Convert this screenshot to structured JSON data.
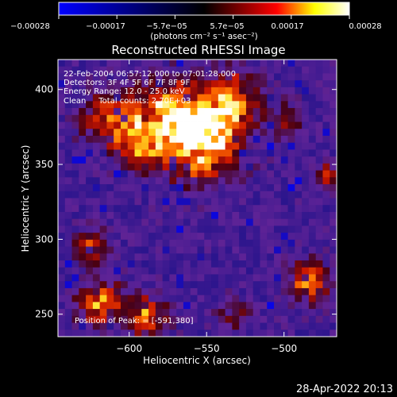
{
  "chart_data": {
    "type": "heatmap",
    "title": "Reconstructed RHESSI Image",
    "xlabel": "Heliocentric X (arcsec)",
    "ylabel": "Heliocentric Y (arcsec)",
    "xlim": [
      -646,
      -553
    ],
    "ylim": [
      235,
      420
    ],
    "x_ticks": [
      {
        "value": -600,
        "label": "−600"
      },
      {
        "value": -550,
        "label": "−550"
      },
      {
        "value": -500,
        "label": "−500"
      }
    ],
    "y_ticks": [
      {
        "value": 250,
        "label": "250"
      },
      {
        "value": 300,
        "label": "300"
      },
      {
        "value": 350,
        "label": "350"
      },
      {
        "value": 400,
        "label": "400"
      }
    ],
    "colorbar": {
      "ticks": [
        "−0.00028",
        "−0.00017",
        "−5.7e−05",
        "5.7e−05",
        "0.00017",
        "0.00028"
      ],
      "unit_label": "(photons cm⁻² s⁻¹ asec⁻²)",
      "range": [
        -0.00028,
        0.00028
      ],
      "colormap": [
        "#0000ff",
        "#000000",
        "#ff0000",
        "#ffff00",
        "#ffffff"
      ]
    },
    "annotations": [
      "22-Feb-2004 06:57:12.000 to 07:01:28.000",
      "Detectors: 3F 4F 5F 6F 7F 8F 9F",
      "Energy Range: 12.0 - 25.0 keV",
      "Clean     Total counts: 2.70E+03",
      "Position of Peak: = [-591,380]"
    ],
    "peak_position": [
      -591,
      380
    ],
    "image_grid": {
      "nx": 40,
      "ny": 40
    }
  },
  "footer": {
    "timestamp": "28-Apr-2022 20:13"
  }
}
